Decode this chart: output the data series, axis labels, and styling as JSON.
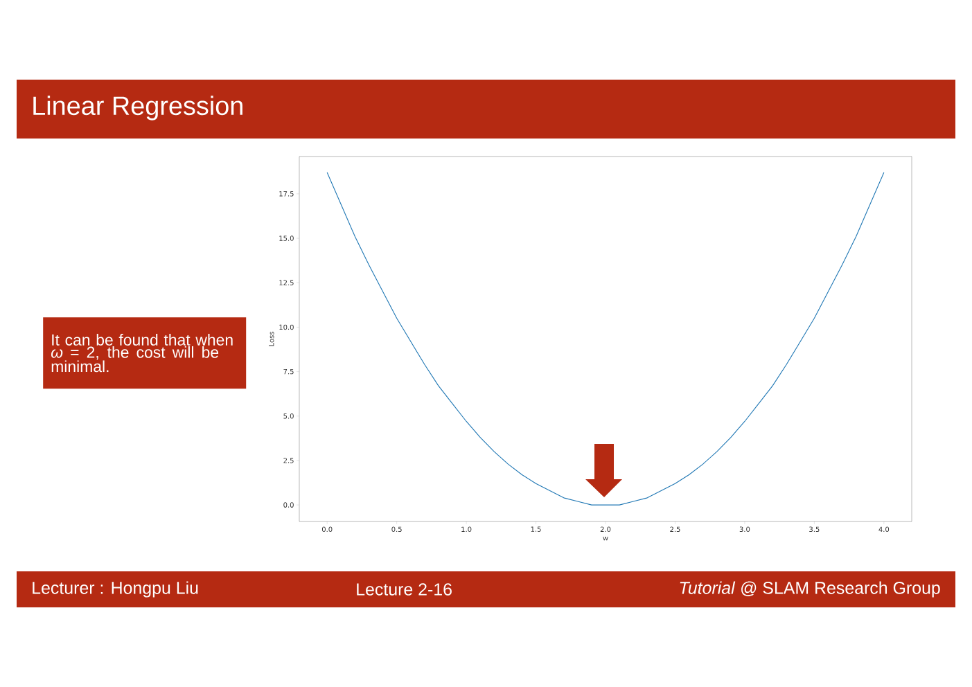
{
  "chart_data": {
    "type": "line",
    "title": "Linear Regression",
    "xlabel": "w",
    "ylabel": "Loss",
    "x": [
      0.0,
      0.1,
      0.2,
      0.3,
      0.4,
      0.5,
      0.6,
      0.7,
      0.8,
      0.9,
      1.0,
      1.1,
      1.2,
      1.3,
      1.4,
      1.5,
      1.6,
      1.7,
      1.8,
      1.9,
      2.0,
      2.1,
      2.2,
      2.3,
      2.4,
      2.5,
      2.6,
      2.7,
      2.8,
      2.9,
      3.0,
      3.1,
      3.2,
      3.3,
      3.4,
      3.5,
      3.6,
      3.7,
      3.8,
      3.9,
      4.0
    ],
    "series": [
      {
        "color": "#1f77b4",
        "values": [
          18.7,
          16.9,
          15.1,
          13.5,
          12.0,
          10.5,
          9.2,
          7.9,
          6.7,
          5.7,
          4.7,
          3.8,
          3.0,
          2.3,
          1.7,
          1.2,
          0.8,
          0.4,
          0.2,
          0.0,
          0.0,
          0.0,
          0.2,
          0.4,
          0.8,
          1.2,
          1.7,
          2.3,
          3.0,
          3.8,
          4.7,
          5.7,
          6.7,
          7.9,
          9.2,
          10.5,
          12.0,
          13.5,
          15.1,
          16.9,
          18.7
        ]
      }
    ],
    "xlim": [
      -0.2,
      4.2
    ],
    "ylim": [
      -0.93,
      19.6
    ],
    "xticks": [
      {
        "value": 0,
        "label": "0.0"
      },
      {
        "value": 0.5,
        "label": "0.5"
      },
      {
        "value": 1,
        "label": "1.0"
      },
      {
        "value": 1.5,
        "label": "1.5"
      },
      {
        "value": 2,
        "label": "2.0"
      },
      {
        "value": 2.5,
        "label": "2.5"
      },
      {
        "value": 3,
        "label": "3.0"
      },
      {
        "value": 3.5,
        "label": "3.5"
      },
      {
        "value": 4,
        "label": "4.0"
      }
    ],
    "yticks": [
      {
        "value": 0,
        "label": "0.0"
      },
      {
        "value": 2.5,
        "label": "2.5"
      },
      {
        "value": 5,
        "label": "5.0"
      },
      {
        "value": 7.5,
        "label": "7.5"
      },
      {
        "value": 10,
        "label": "10.0"
      },
      {
        "value": 12.5,
        "label": "12.5"
      },
      {
        "value": 15,
        "label": "15.0"
      },
      {
        "value": 17.5,
        "label": "17.5"
      }
    ],
    "annotations": [
      "It can be found that when *ω* = 2, the cost will be minimal.",
      "Lecturer : Hongpu Liu",
      "Lecture 2-16",
      "*Tutorial* @ SLAM Research Group"
    ]
  }
}
